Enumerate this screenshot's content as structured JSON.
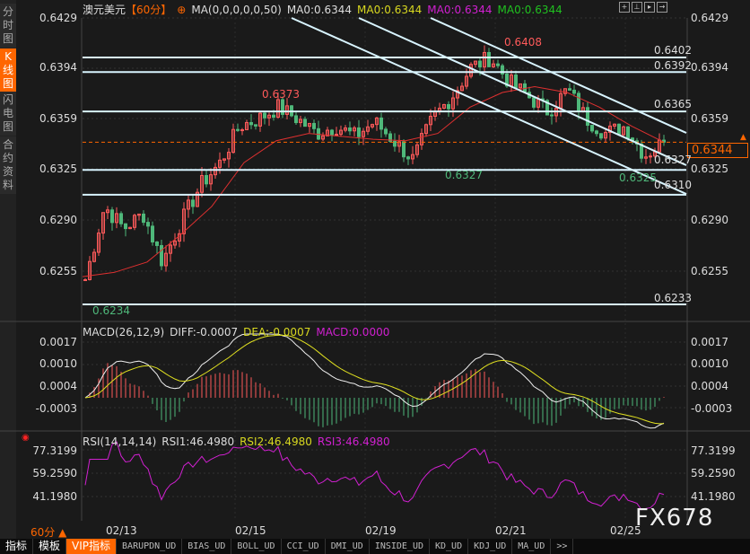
{
  "sidebar": {
    "tabs": [
      {
        "label": "分时图",
        "active": false
      },
      {
        "label": "K线图",
        "active": true
      },
      {
        "label": "闪电图",
        "active": false
      },
      {
        "label": "合约资料",
        "active": false
      }
    ]
  },
  "header": {
    "symbol": "澳元美元",
    "period": "【60分】",
    "ma_label": "MA(0,0,0,0,0,50)",
    "ma_values": [
      "MA0:0.6344",
      "MA0:0.6344",
      "MA0:0.6344",
      "MA0:0.6344"
    ],
    "ma_colors": [
      "#dddddd",
      "#d8d820",
      "#d020d0",
      "#20c020"
    ]
  },
  "toolbar_icons": [
    "crosshair-icon",
    "zoom-in-icon",
    "play-icon",
    "exit-icon"
  ],
  "price_axis": {
    "ticks": [
      "0.6429",
      "0.6394",
      "0.6359",
      "0.6325",
      "0.6290",
      "0.6255"
    ],
    "current": "0.6344"
  },
  "annotations": {
    "high_left": "0.6373",
    "low_left": "0.6234",
    "high": "0.6408",
    "low_mid": "0.6327",
    "low_right": "0.6325"
  },
  "levels": [
    "0.6402",
    "0.6392",
    "0.6365",
    "0.6327",
    "0.6310",
    "0.6233"
  ],
  "macd": {
    "label": "MACD(26,12,9)",
    "diff": "DIFF:-0.0007",
    "dea": "DEA:-0.0007",
    "macd": "MACD:0.0000",
    "ticks": [
      "0.0017",
      "0.0010",
      "0.0004",
      "-0.0003"
    ]
  },
  "rsi": {
    "label": "RSI(14,14,14)",
    "rsi1": "RSI1:46.4980",
    "rsi2": "RSI2:46.4980",
    "rsi3": "RSI3:46.4980",
    "ticks": [
      "77.3199",
      "59.2590",
      "41.1980"
    ]
  },
  "x_axis": {
    "period": "60分 ▲",
    "dates": [
      "02/13",
      "02/15",
      "02/19",
      "02/21",
      "02/25"
    ]
  },
  "bottom_tabs": [
    "指标",
    "模板",
    "VIP指标",
    "BARUPDN_UD",
    "BIAS_UD",
    "BOLL_UD",
    "CCI_UD",
    "DMI_UD",
    "INSIDE_UD",
    "KD_UD",
    "KDJ_UD",
    "MA_UD",
    ">>"
  ],
  "watermark": "FX678",
  "colors": {
    "up": "#ff5a5a",
    "down": "#4fb87a",
    "accent": "#ff6600",
    "line": "#d8f4ff",
    "ma": "#e03030"
  },
  "chart_data": {
    "type": "candlestick",
    "ylim": [
      0.6233,
      0.6429
    ],
    "closes": [
      0.625,
      0.63,
      0.6285,
      0.6295,
      0.6262,
      0.629,
      0.6315,
      0.633,
      0.6355,
      0.636,
      0.6368,
      0.636,
      0.635,
      0.6355,
      0.6348,
      0.6358,
      0.6345,
      0.6332,
      0.636,
      0.6375,
      0.6395,
      0.6402,
      0.6385,
      0.6375,
      0.6365,
      0.638,
      0.636,
      0.635,
      0.6355,
      0.6335,
      0.6344
    ],
    "ma50": [
      0.6252,
      0.6255,
      0.6262,
      0.628,
      0.63,
      0.633,
      0.6345,
      0.635,
      0.6348,
      0.6346,
      0.6345,
      0.635,
      0.6368,
      0.6378,
      0.6382,
      0.6378,
      0.6368,
      0.6355,
      0.6344
    ]
  }
}
